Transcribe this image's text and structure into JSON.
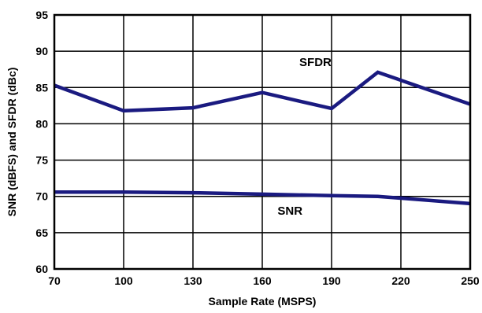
{
  "chart_data": {
    "type": "line",
    "title": "",
    "xlabel": "Sample Rate (MSPS)",
    "ylabel": "SNR (dBFS) and SFDR (dBc)",
    "xlim": [
      70,
      250
    ],
    "ylim": [
      60,
      95
    ],
    "xticks": [
      70,
      100,
      130,
      160,
      190,
      220,
      250
    ],
    "yticks": [
      60,
      65,
      70,
      75,
      80,
      85,
      90,
      95
    ],
    "grid": true,
    "legend": "none",
    "line_color": "#1a1a80",
    "series": [
      {
        "name": "SFDR",
        "x": [
          70,
          100,
          130,
          160,
          190,
          210,
          250
        ],
        "y": [
          85.3,
          81.8,
          82.2,
          84.3,
          82.1,
          87.1,
          82.7
        ]
      },
      {
        "name": "SNR",
        "x": [
          70,
          100,
          130,
          160,
          190,
          210,
          250
        ],
        "y": [
          70.6,
          70.6,
          70.5,
          70.3,
          70.1,
          70.0,
          69.0
        ]
      }
    ],
    "annotations": [
      {
        "text": "SFDR",
        "x": 183,
        "y": 88.5
      },
      {
        "text": "SNR",
        "x": 172,
        "y": 68.0
      }
    ]
  }
}
